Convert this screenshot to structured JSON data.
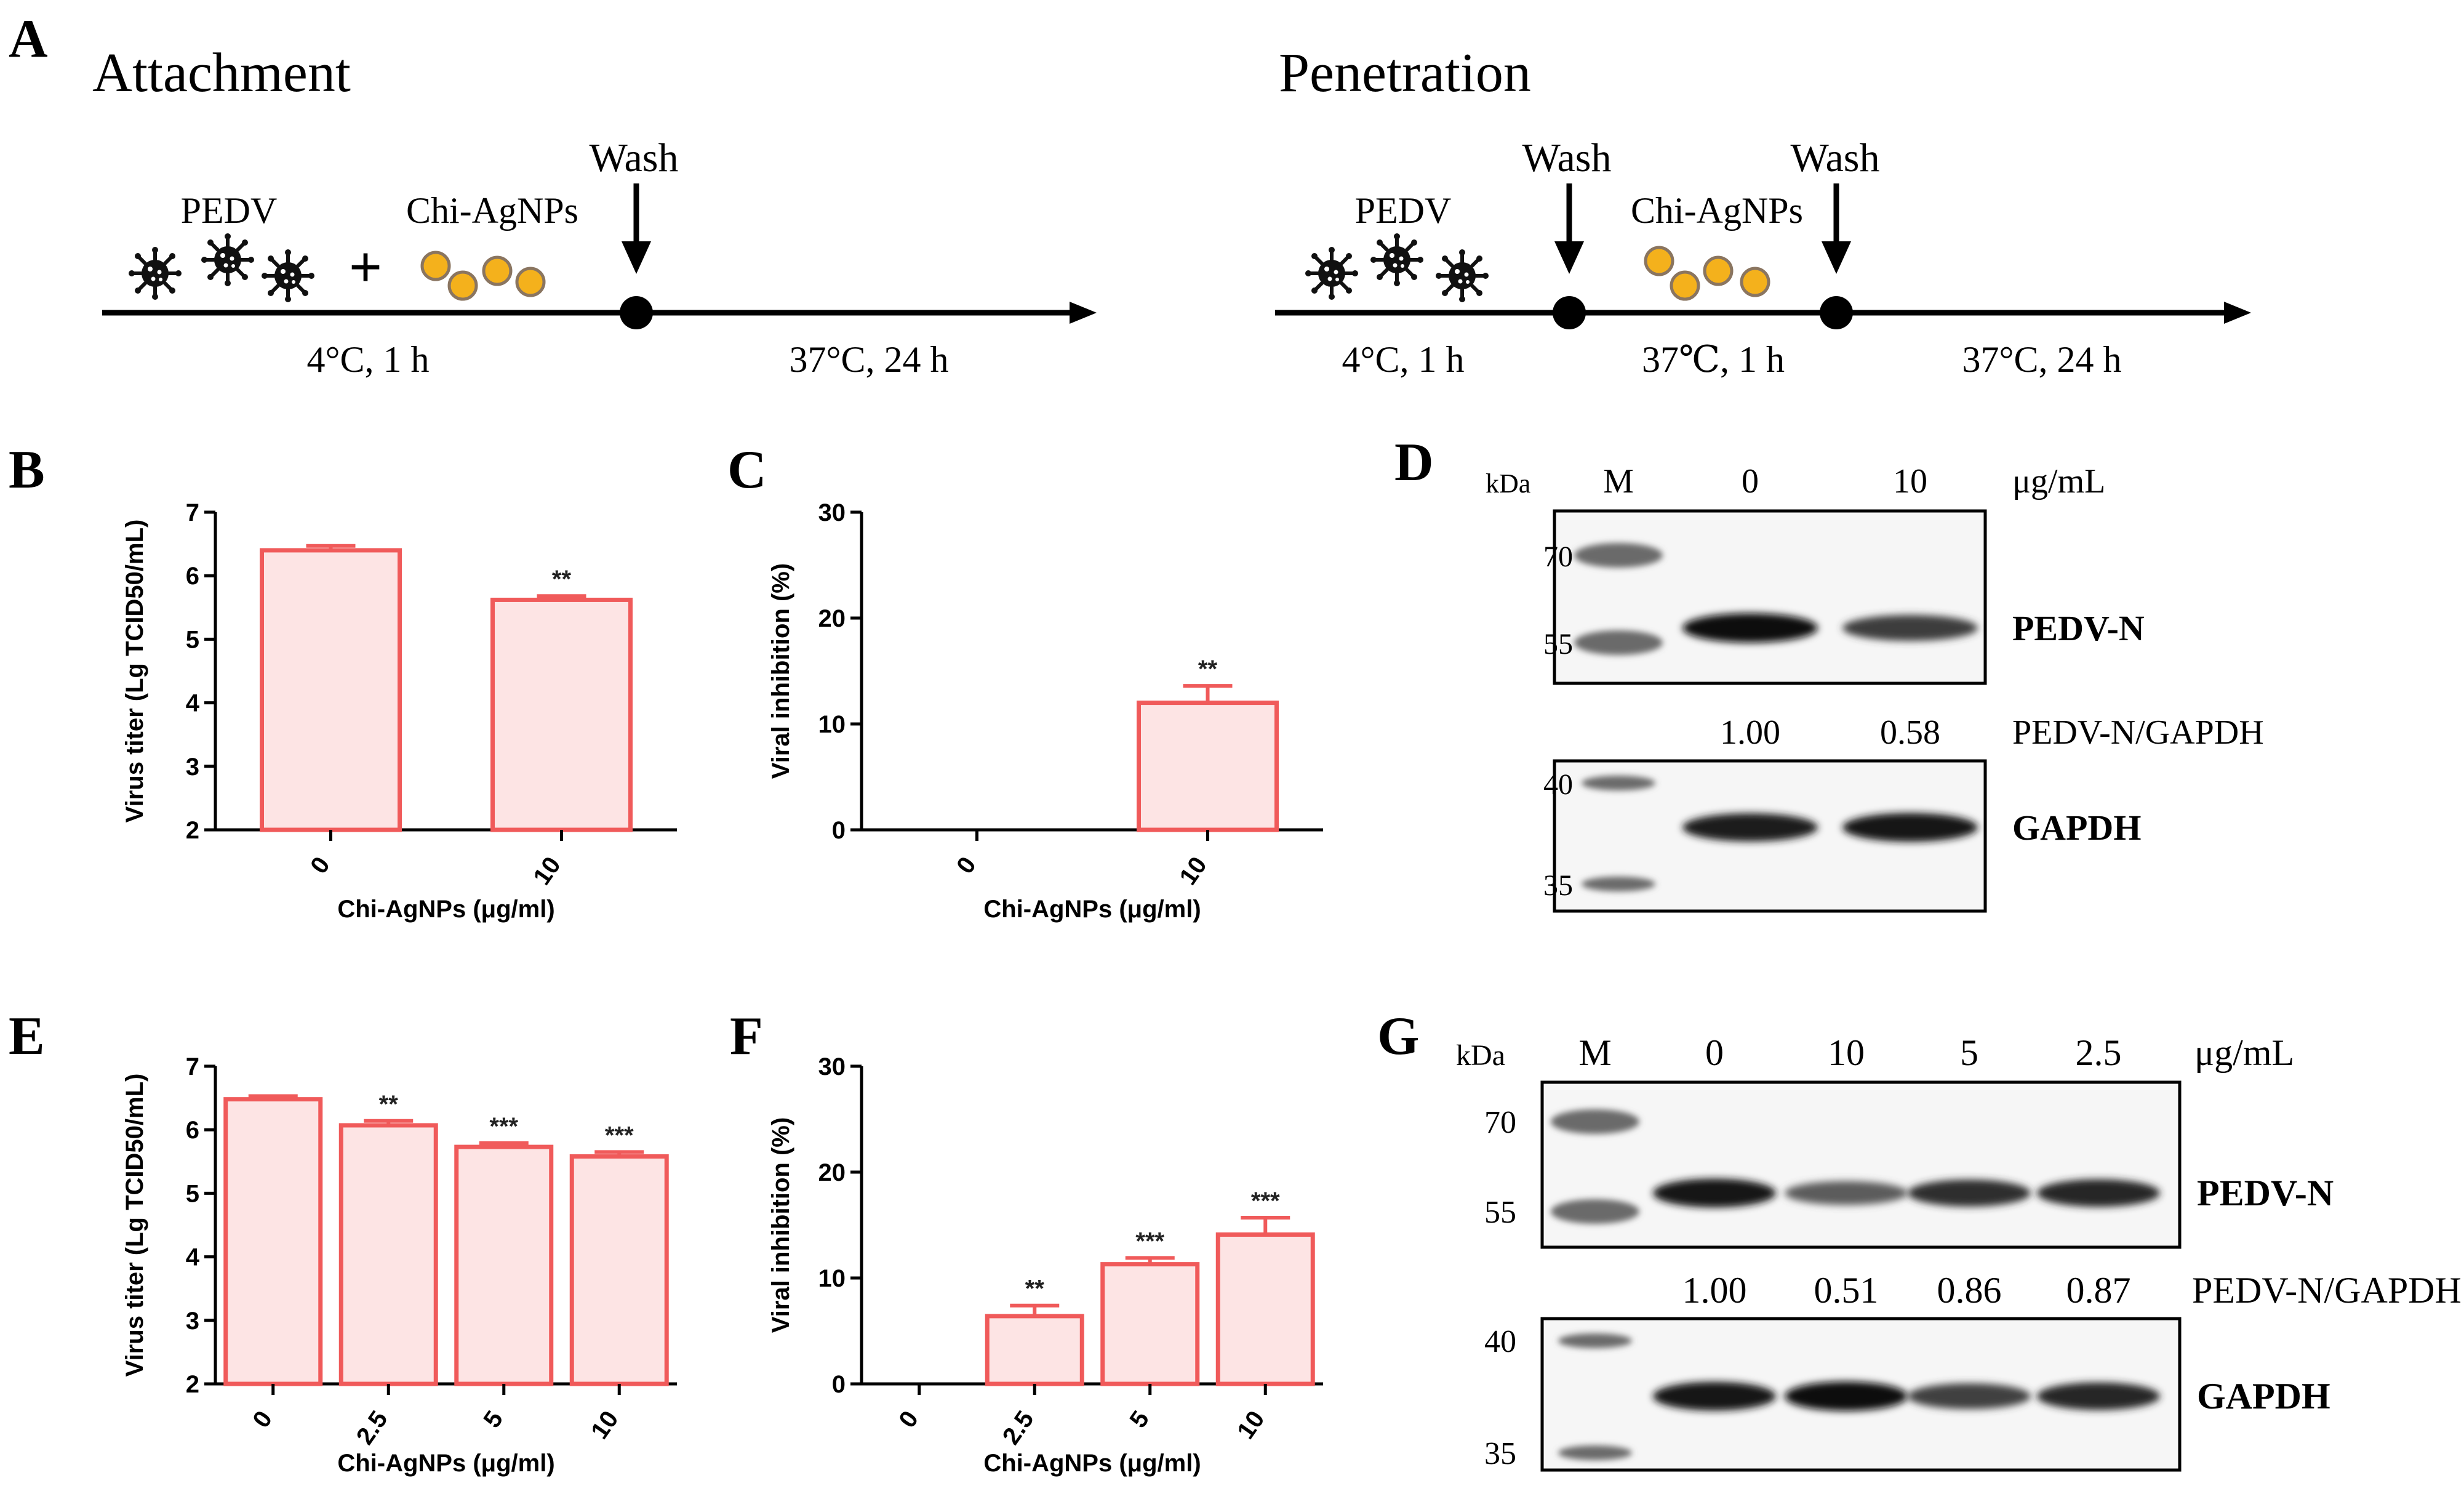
{
  "panel_letters": {
    "a": "A",
    "b": "B",
    "c": "C",
    "d": "D",
    "e": "E",
    "f": "F",
    "g": "G"
  },
  "panel_a": {
    "attachment": {
      "title": "Attachment",
      "virus_label": "PEDV",
      "plus": "+",
      "np_label": "Chi-AgNPs",
      "wash_label": "Wash",
      "step1": "4°C, 1 h",
      "step2": "37°C, 24 h"
    },
    "penetration": {
      "title": "Penetration",
      "virus_label": "PEDV",
      "np_label": "Chi-AgNPs",
      "wash1_label": "Wash",
      "wash2_label": "Wash",
      "step1": "4°C, 1 h",
      "step2": "37℃, 1 h",
      "step3": "37°C, 24 h"
    },
    "colors": {
      "virus": "#111111",
      "nanoparticle_fill": "#f4b11c",
      "nanoparticle_edge": "#8a7560",
      "arrow": "#000000"
    }
  },
  "chart_data": [
    {
      "panel": "B",
      "type": "bar",
      "categories": [
        "0",
        "10"
      ],
      "values": [
        6.4,
        5.62
      ],
      "errors": [
        0.07,
        0.06
      ],
      "significance": [
        "",
        "**"
      ],
      "xlabel": "Chi-AgNPs (μg/ml)",
      "ylabel": "Virus titer (Lg TCID50/mL)",
      "ylim": [
        2,
        7
      ],
      "yticks": [
        "2",
        "3",
        "4",
        "5",
        "6",
        "7"
      ],
      "bar_color": "#f05a5a",
      "bar_fill": "#fde4e4"
    },
    {
      "panel": "C",
      "type": "bar",
      "categories": [
        "0",
        "10"
      ],
      "values": [
        0,
        12
      ],
      "errors": [
        0,
        1.6
      ],
      "significance": [
        "",
        "**"
      ],
      "xlabel": "Chi-AgNPs (μg/ml)",
      "ylabel": "Viral inhibition (%)",
      "ylim": [
        0,
        30
      ],
      "yticks": [
        "0",
        "10",
        "20",
        "30"
      ],
      "bar_color": "#f05a5a",
      "bar_fill": "#fde4e4"
    },
    {
      "panel": "E",
      "type": "bar",
      "categories": [
        "0",
        "2.5",
        "5",
        "10"
      ],
      "values": [
        6.48,
        6.07,
        5.73,
        5.58
      ],
      "errors": [
        0.05,
        0.07,
        0.06,
        0.07
      ],
      "significance": [
        "",
        "**",
        "***",
        "***"
      ],
      "xlabel": "Chi-AgNPs (μg/ml)",
      "ylabel": "Virus titer (Lg TCID50/mL)",
      "ylim": [
        2,
        7
      ],
      "yticks": [
        "2",
        "3",
        "4",
        "5",
        "6",
        "7"
      ],
      "bar_color": "#f05a5a",
      "bar_fill": "#fde4e4"
    },
    {
      "panel": "F",
      "type": "bar",
      "categories": [
        "0",
        "2.5",
        "5",
        "10"
      ],
      "values": [
        0,
        6.4,
        11.3,
        14.1
      ],
      "errors": [
        0,
        1.0,
        0.6,
        1.6
      ],
      "significance": [
        "",
        "**",
        "***",
        "***"
      ],
      "xlabel": "Chi-AgNPs (μg/ml)",
      "ylabel": "Viral inhibition (%)",
      "ylim": [
        0,
        30
      ],
      "yticks": [
        "0",
        "10",
        "20",
        "30"
      ],
      "bar_color": "#f05a5a",
      "bar_fill": "#fde4e4"
    }
  ],
  "western_d": {
    "kda_label": "kDa",
    "marker_label": "M",
    "lanes": [
      "0",
      "10"
    ],
    "unit": "μg/mL",
    "top": {
      "markers": [
        "70",
        "55"
      ],
      "band_label": "PEDV-N",
      "band_strength": [
        1.0,
        0.72
      ]
    },
    "ratio_label": "PEDV-N/GAPDH",
    "ratios": [
      "1.00",
      "0.58"
    ],
    "bottom": {
      "markers": [
        "40",
        "35"
      ],
      "band_label": "GAPDH",
      "band_strength": [
        0.9,
        0.95
      ]
    }
  },
  "western_g": {
    "kda_label": "kDa",
    "marker_label": "M",
    "lanes": [
      "0",
      "10",
      "5",
      "2.5"
    ],
    "unit": "μg/mL",
    "top": {
      "markers": [
        "70",
        "55"
      ],
      "band_label": "PEDV-N",
      "band_strength": [
        0.95,
        0.55,
        0.8,
        0.85
      ]
    },
    "ratio_label": "PEDV-N/GAPDH",
    "ratios": [
      "1.00",
      "0.51",
      "0.86",
      "0.87"
    ],
    "bottom": {
      "markers": [
        "40",
        "35"
      ],
      "band_label": "GAPDH",
      "band_strength": [
        0.95,
        1.0,
        0.7,
        0.85
      ]
    }
  }
}
